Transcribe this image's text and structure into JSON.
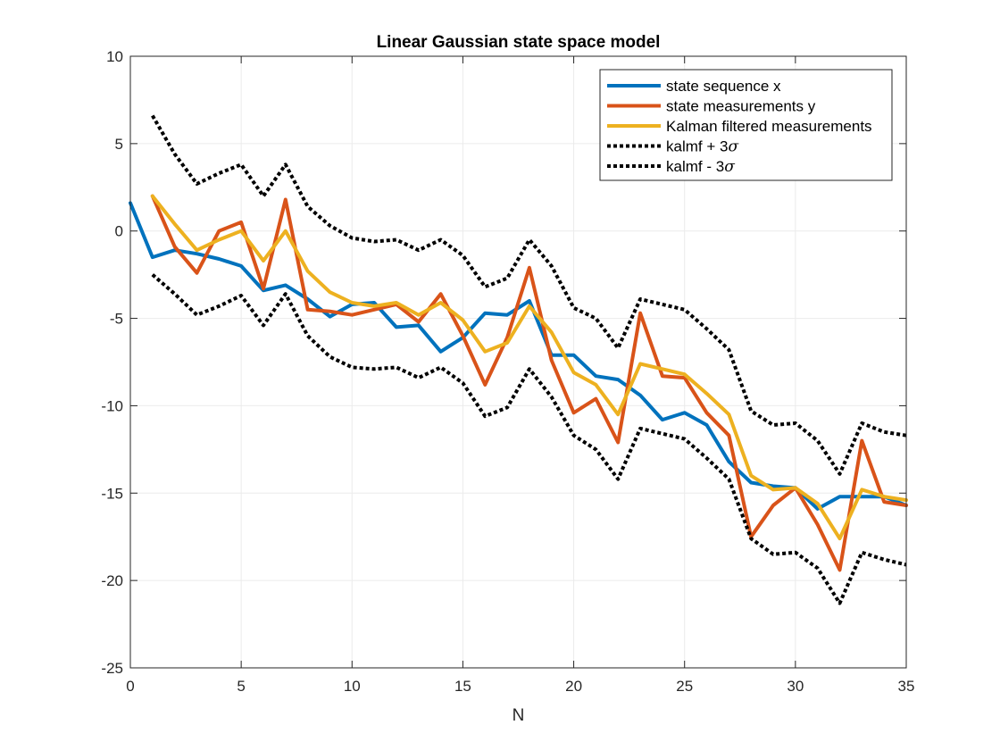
{
  "chart_data": {
    "type": "line",
    "title": "Linear Gaussian state space model",
    "xlabel": "N",
    "ylabel": "",
    "xlim": [
      0,
      35
    ],
    "ylim": [
      -25,
      10
    ],
    "xticks": [
      0,
      5,
      10,
      15,
      20,
      25,
      30,
      35
    ],
    "yticks": [
      -25,
      -20,
      -15,
      -10,
      -5,
      0,
      5,
      10
    ],
    "grid": true,
    "legend_position": "top-right",
    "series": [
      {
        "name": "state sequence x",
        "color": "#0072BD",
        "style": "solid",
        "x": [
          0,
          1,
          2,
          3,
          4,
          5,
          6,
          7,
          8,
          9,
          10,
          11,
          12,
          13,
          14,
          15,
          16,
          17,
          18,
          19,
          20,
          21,
          22,
          23,
          24,
          25,
          26,
          27,
          28,
          29,
          30,
          31,
          32,
          33,
          34,
          35
        ],
        "values": [
          1.6,
          -1.5,
          -1.1,
          -1.3,
          -1.6,
          -2.0,
          -3.4,
          -3.1,
          -3.9,
          -4.9,
          -4.2,
          -4.1,
          -5.5,
          -5.4,
          -6.9,
          -6.1,
          -4.7,
          -4.8,
          -4.0,
          -7.1,
          -7.1,
          -8.3,
          -8.5,
          -9.4,
          -10.8,
          -10.4,
          -11.1,
          -13.2,
          -14.4,
          -14.6,
          -14.7,
          -15.9,
          -15.2,
          -15.2,
          -15.2,
          -15.7
        ]
      },
      {
        "name": "state measurements y",
        "color": "#D95319",
        "style": "solid",
        "x": [
          1,
          2,
          3,
          4,
          5,
          6,
          7,
          8,
          9,
          10,
          11,
          12,
          13,
          14,
          15,
          16,
          17,
          18,
          19,
          20,
          21,
          22,
          23,
          24,
          25,
          26,
          27,
          28,
          29,
          30,
          31,
          32,
          33,
          34,
          35
        ],
        "values": [
          2.0,
          -0.9,
          -2.4,
          0.0,
          0.5,
          -3.3,
          1.8,
          -4.5,
          -4.6,
          -4.8,
          -4.5,
          -4.2,
          -5.2,
          -3.6,
          -6.0,
          -8.8,
          -6.1,
          -2.1,
          -7.4,
          -10.4,
          -9.6,
          -12.1,
          -4.7,
          -8.3,
          -8.4,
          -10.4,
          -11.7,
          -17.5,
          -15.7,
          -14.7,
          -16.8,
          -19.4,
          -12.0,
          -15.5,
          -15.7
        ]
      },
      {
        "name": "Kalman filtered measurements",
        "color": "#EDB120",
        "style": "solid",
        "x": [
          1,
          2,
          3,
          4,
          5,
          6,
          7,
          8,
          9,
          10,
          11,
          12,
          13,
          14,
          15,
          16,
          17,
          18,
          19,
          20,
          21,
          22,
          23,
          24,
          25,
          26,
          27,
          28,
          29,
          30,
          31,
          32,
          33,
          34,
          35
        ],
        "values": [
          2.0,
          0.4,
          -1.1,
          -0.5,
          0.0,
          -1.7,
          0.0,
          -2.3,
          -3.5,
          -4.1,
          -4.3,
          -4.1,
          -4.8,
          -4.1,
          -5.1,
          -6.9,
          -6.4,
          -4.3,
          -5.8,
          -8.1,
          -8.8,
          -10.5,
          -7.6,
          -7.9,
          -8.2,
          -9.3,
          -10.5,
          -14.0,
          -14.8,
          -14.7,
          -15.6,
          -17.6,
          -14.8,
          -15.2,
          -15.4
        ]
      },
      {
        "name": "kalmf + 3σ",
        "color": "#000000",
        "style": "dotted",
        "x": [
          1,
          2,
          3,
          4,
          5,
          6,
          7,
          8,
          9,
          10,
          11,
          12,
          13,
          14,
          15,
          16,
          17,
          18,
          19,
          20,
          21,
          22,
          23,
          24,
          25,
          26,
          27,
          28,
          29,
          30,
          31,
          32,
          33,
          34,
          35
        ],
        "values": [
          6.6,
          4.4,
          2.7,
          3.3,
          3.8,
          2.0,
          3.8,
          1.4,
          0.3,
          -0.4,
          -0.6,
          -0.5,
          -1.1,
          -0.5,
          -1.4,
          -3.2,
          -2.7,
          -0.5,
          -2.0,
          -4.4,
          -5.0,
          -6.7,
          -3.9,
          -4.2,
          -4.5,
          -5.6,
          -6.8,
          -10.3,
          -11.1,
          -11.0,
          -12.0,
          -13.9,
          -11.0,
          -11.5,
          -11.7
        ]
      },
      {
        "name": "kalmf - 3σ",
        "color": "#000000",
        "style": "dotted",
        "x": [
          1,
          2,
          3,
          4,
          5,
          6,
          7,
          8,
          9,
          10,
          11,
          12,
          13,
          14,
          15,
          16,
          17,
          18,
          19,
          20,
          21,
          22,
          23,
          24,
          25,
          26,
          27,
          28,
          29,
          30,
          31,
          32,
          33,
          34,
          35
        ],
        "values": [
          -2.5,
          -3.6,
          -4.8,
          -4.3,
          -3.7,
          -5.4,
          -3.6,
          -6.0,
          -7.2,
          -7.8,
          -7.9,
          -7.8,
          -8.4,
          -7.8,
          -8.7,
          -10.6,
          -10.1,
          -7.9,
          -9.5,
          -11.7,
          -12.5,
          -14.2,
          -11.3,
          -11.6,
          -11.9,
          -13.0,
          -14.2,
          -17.6,
          -18.5,
          -18.4,
          -19.3,
          -21.3,
          -18.4,
          -18.8,
          -19.1
        ]
      }
    ]
  }
}
